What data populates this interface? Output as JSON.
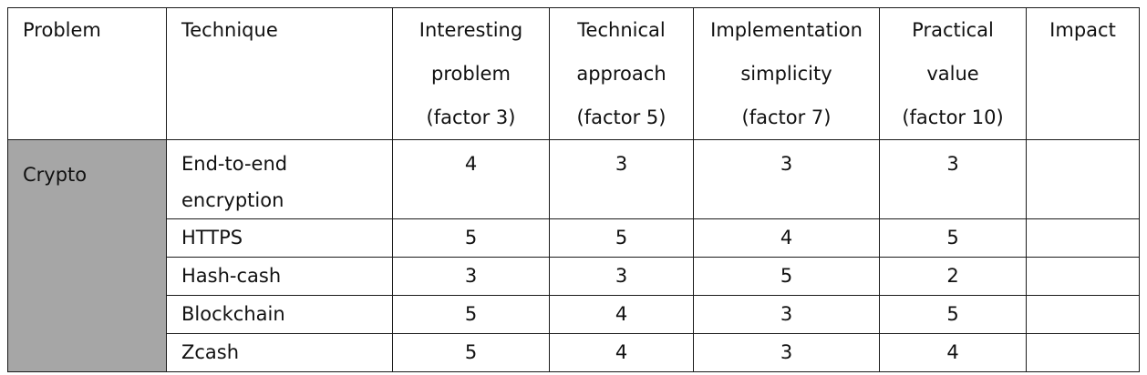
{
  "headers": {
    "problem": "Problem",
    "technique": "Technique",
    "interesting": [
      "Interesting",
      "problem",
      "(factor 3)"
    ],
    "technical": [
      "Technical",
      "approach",
      "(factor 5)"
    ],
    "implementation": [
      "Implementation",
      "simplicity",
      "(factor 7)"
    ],
    "practical": [
      "Practical",
      "value",
      "(factor 10)"
    ],
    "impact": "Impact"
  },
  "problem": "Crypto",
  "rows": [
    {
      "technique": [
        "End-to-end",
        "encryption"
      ],
      "interesting": "4",
      "technical": "3",
      "implementation": "3",
      "practical": "3",
      "impact": ""
    },
    {
      "technique": "HTTPS",
      "interesting": "5",
      "technical": "5",
      "implementation": "4",
      "practical": "5",
      "impact": ""
    },
    {
      "technique": "Hash-cash",
      "interesting": "3",
      "technical": "3",
      "implementation": "5",
      "practical": "2",
      "impact": ""
    },
    {
      "technique": "Blockchain",
      "interesting": "5",
      "technical": "4",
      "implementation": "3",
      "practical": "5",
      "impact": ""
    },
    {
      "technique": "Zcash",
      "interesting": "5",
      "technical": "4",
      "implementation": "3",
      "practical": "4",
      "impact": ""
    }
  ],
  "colors": {
    "problem_fill": "#a6a6a6",
    "border": "#1a1a1a"
  }
}
